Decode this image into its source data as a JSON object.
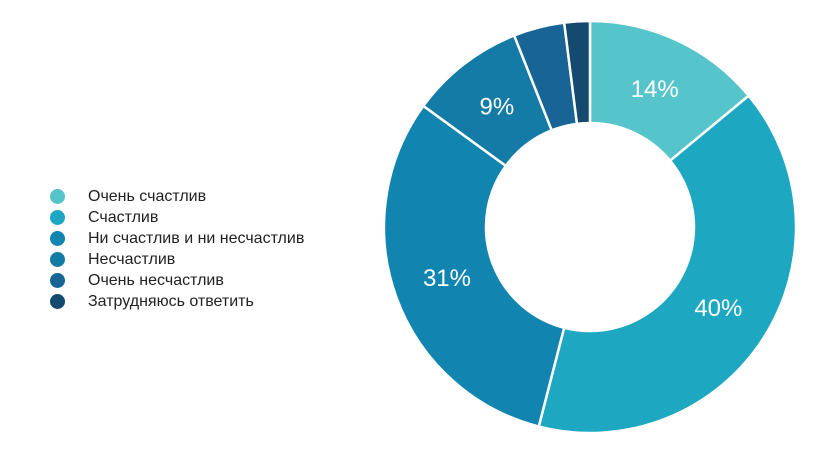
{
  "chart_data": {
    "type": "pie",
    "variant": "donut",
    "legend_position": "left",
    "categories": [
      "Очень счастлив",
      "Счастлив",
      "Ни счастлив и ни несчастлив",
      "Несчастлив",
      "Очень несчастлив",
      "Затрудняюсь ответить"
    ],
    "values": [
      14,
      40,
      31,
      9,
      4,
      2
    ],
    "value_labels": [
      "14%",
      "40%",
      "31%",
      "9%",
      "",
      ""
    ],
    "colors": [
      "#56c4cb",
      "#1ea7c1",
      "#1284b0",
      "#147aa6",
      "#186494",
      "#134a6e"
    ]
  }
}
